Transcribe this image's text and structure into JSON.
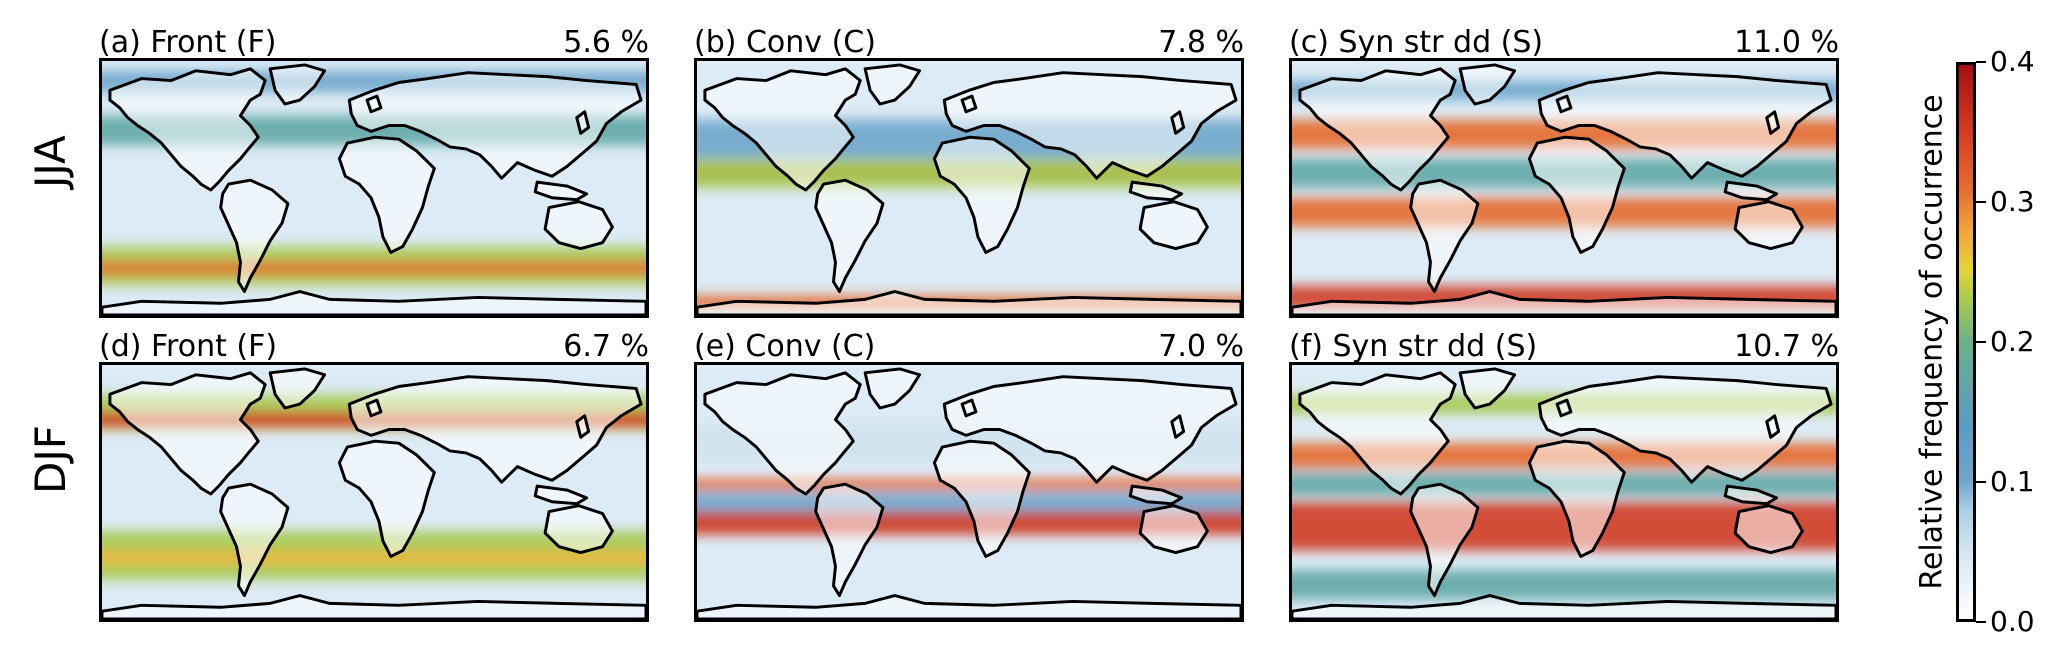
{
  "rows": [
    {
      "label": "JJA"
    },
    {
      "label": "DJF"
    }
  ],
  "panels": [
    {
      "title": "(a) Front (F)",
      "percent": "5.6 %",
      "season": "JJA",
      "class": "front"
    },
    {
      "title": "(b) Conv (C)",
      "percent": "7.8 %",
      "season": "JJA",
      "class": "conv"
    },
    {
      "title": "(c) Syn str dd (S)",
      "percent": "11.0 %",
      "season": "JJA",
      "class": "syn"
    },
    {
      "title": "(d) Front (F)",
      "percent": "6.7 %",
      "season": "DJF",
      "class": "front"
    },
    {
      "title": "(e) Conv (C)",
      "percent": "7.0 %",
      "season": "DJF",
      "class": "conv"
    },
    {
      "title": "(f) Syn str dd (S)",
      "percent": "10.7 %",
      "season": "DJF",
      "class": "syn"
    }
  ],
  "colorbar": {
    "label": "Relative frequency of occurrence",
    "ticks": [
      "0.0",
      "0.1",
      "0.2",
      "0.3",
      "0.4"
    ],
    "range": [
      0.0,
      0.4
    ],
    "colors": {
      "low": "#ffffff",
      "mid_low": "#5b9bc4",
      "mid": "#a6c94f",
      "mid_high": "#f1a53a",
      "high": "#a50f15"
    }
  }
}
